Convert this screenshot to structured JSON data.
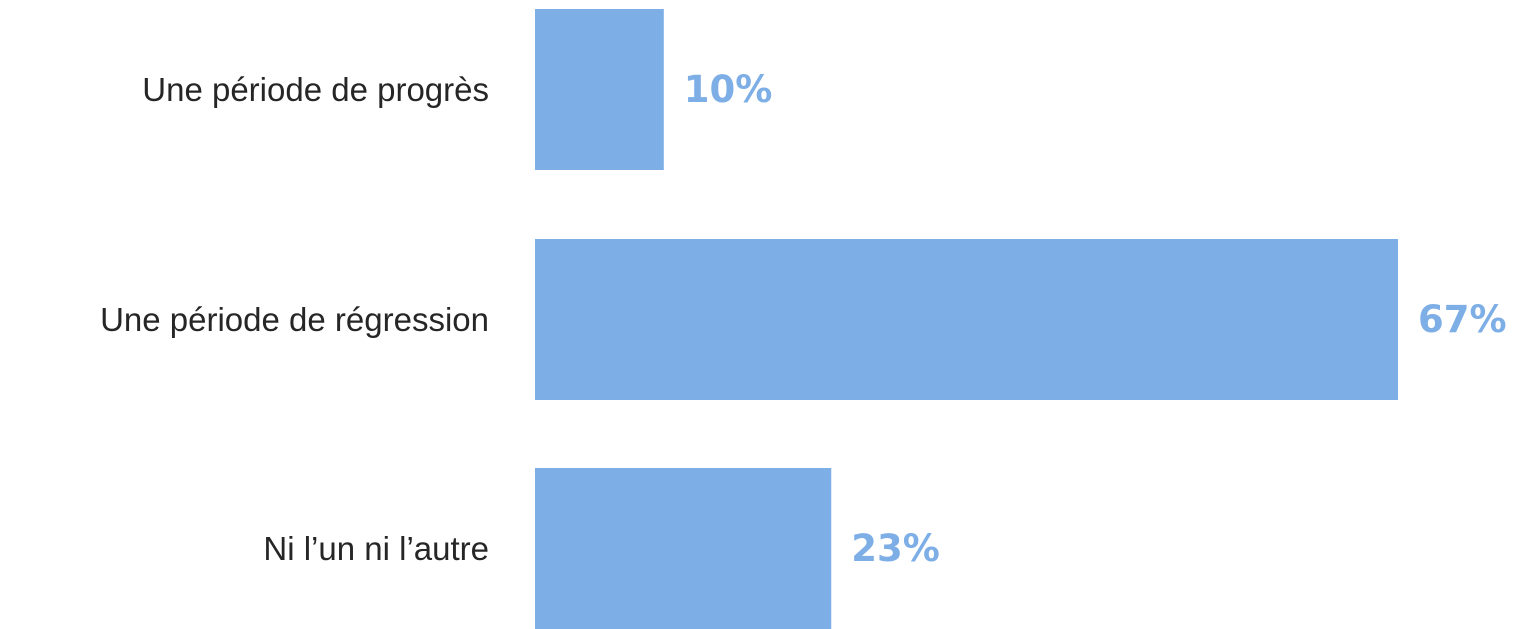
{
  "chart_data": {
    "type": "bar",
    "orientation": "horizontal",
    "categories": [
      "Une période de progrès",
      "Une période de régression",
      "Ni l’un ni l’autre"
    ],
    "values": [
      10,
      67,
      23
    ],
    "value_labels": [
      "10%",
      "67%",
      "23%"
    ],
    "unit": "%",
    "xlim": [
      0,
      67
    ],
    "grid": false,
    "legend": "none",
    "bar_color": "#7daee6",
    "value_label_color": "#7daee6"
  }
}
